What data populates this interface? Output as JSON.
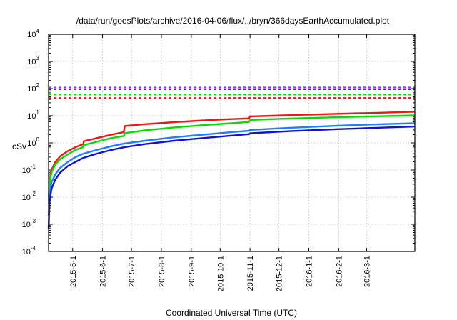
{
  "chart_data": {
    "type": "line",
    "title": "/data/run/goesPlots/archive/2016-04-06/flux/../bryn/366daysEarthAccumulated.plot",
    "xlabel": "Coordinated Universal Time (UTC)",
    "ylabel": "cSv",
    "x_units": "days since 2015-04-06",
    "xlim": [
      0,
      380
    ],
    "yscale": "log",
    "ylim": [
      0.0001,
      10000
    ],
    "grid": true,
    "x_ticks": [
      {
        "day": 25,
        "label": "2015-5-1"
      },
      {
        "day": 56,
        "label": "2015-6-1"
      },
      {
        "day": 86,
        "label": "2015-7-1"
      },
      {
        "day": 117,
        "label": "2015-8-1"
      },
      {
        "day": 148,
        "label": "2015-9-1"
      },
      {
        "day": 178,
        "label": "2015-10-1"
      },
      {
        "day": 209,
        "label": "2015-11-1"
      },
      {
        "day": 239,
        "label": "2015-12-1"
      },
      {
        "day": 270,
        "label": "2016-1-1"
      },
      {
        "day": 301,
        "label": "2016-2-1"
      },
      {
        "day": 330,
        "label": "2016-3-1"
      }
    ],
    "y_ticks": [
      {
        "value": 0.0001,
        "base": "10",
        "exp": "-4"
      },
      {
        "value": 0.001,
        "base": "10",
        "exp": "-3"
      },
      {
        "value": 0.01,
        "base": "10",
        "exp": "-2"
      },
      {
        "value": 0.1,
        "base": "10",
        "exp": "-1"
      },
      {
        "value": 1,
        "base": "10",
        "exp": "0"
      },
      {
        "value": 10,
        "base": "10",
        "exp": "1"
      },
      {
        "value": 100,
        "base": "10",
        "exp": "2"
      },
      {
        "value": 1000,
        "base": "10",
        "exp": "3"
      },
      {
        "value": 10000,
        "base": "10",
        "exp": "4"
      }
    ],
    "thresholds": [
      {
        "value": 110,
        "color": "#9933ff"
      },
      {
        "value": 95,
        "color": "#1010e0"
      },
      {
        "value": 60,
        "color": "#00e000"
      },
      {
        "value": 45,
        "color": "#ff1010"
      }
    ],
    "series": [
      {
        "color": "#ff1010",
        "x": [
          0.2,
          1,
          3,
          7,
          12,
          20,
          28,
          36,
          36.5,
          50,
          65,
          78,
          79,
          100,
          130,
          160,
          190,
          208,
          209,
          250,
          300,
          340,
          380
        ],
        "y": [
          0.01,
          0.04,
          0.1,
          0.2,
          0.32,
          0.5,
          0.7,
          0.9,
          1.15,
          1.5,
          2.0,
          2.5,
          4.2,
          4.9,
          5.8,
          6.7,
          7.5,
          8.0,
          9.4,
          10.5,
          11.8,
          12.8,
          14
        ]
      },
      {
        "color": "#00e000",
        "x": [
          0.2,
          1,
          3,
          7,
          12,
          20,
          28,
          36,
          36.5,
          50,
          65,
          78,
          79,
          100,
          130,
          160,
          190,
          208,
          209,
          250,
          300,
          340,
          380
        ],
        "y": [
          0.006,
          0.03,
          0.08,
          0.16,
          0.25,
          0.38,
          0.55,
          0.7,
          0.83,
          1.1,
          1.5,
          1.8,
          2.3,
          2.9,
          3.7,
          4.5,
          5.3,
          5.9,
          7.0,
          7.9,
          8.8,
          9.5,
          10.3
        ]
      },
      {
        "color": "#1a80ff",
        "x": [
          0.2,
          1,
          3,
          7,
          12,
          20,
          28,
          36,
          50,
          65,
          79,
          100,
          130,
          160,
          190,
          208,
          209,
          250,
          300,
          340,
          380
        ],
        "y": [
          0.002,
          0.012,
          0.035,
          0.07,
          0.12,
          0.2,
          0.3,
          0.4,
          0.55,
          0.75,
          0.95,
          1.2,
          1.6,
          2.0,
          2.5,
          2.8,
          3.0,
          3.6,
          4.3,
          4.8,
          5.3
        ]
      },
      {
        "color": "#1010e0",
        "x": [
          0.05,
          1,
          3,
          7,
          12,
          20,
          28,
          36,
          50,
          65,
          79,
          100,
          130,
          160,
          190,
          208,
          209,
          250,
          300,
          340,
          380
        ],
        "y": [
          0.0007,
          0.006,
          0.02,
          0.045,
          0.08,
          0.14,
          0.2,
          0.28,
          0.4,
          0.55,
          0.7,
          0.9,
          1.2,
          1.5,
          1.85,
          2.1,
          2.25,
          2.7,
          3.2,
          3.6,
          4.0
        ]
      }
    ]
  }
}
